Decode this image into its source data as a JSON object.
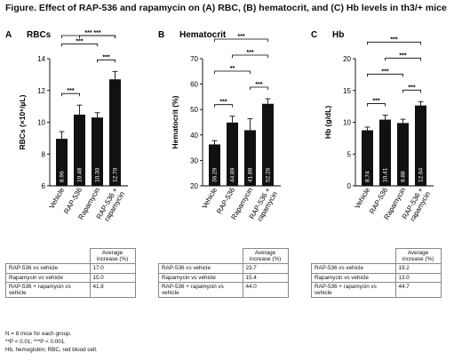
{
  "figure_title": "Figure. Effect of RAP-536 and rapamycin on (A) RBC, (B) hematocrit, and (C) Hb levels in th3/+ mice",
  "colors": {
    "bar": "#111111",
    "axis": "#000000",
    "bar_label": "#ffffff"
  },
  "chart_data": [
    {
      "type": "bar",
      "panel": "A",
      "title": "RBCs",
      "ylabel": "RBCs (×10⁶/µL)",
      "ylim": [
        6,
        14
      ],
      "yticks": [
        6,
        8,
        10,
        12,
        14
      ],
      "categories": [
        "Vehicle",
        "RAP-536",
        "Rapamycin",
        "RAP-536 + rapamycin"
      ],
      "values": [
        8.96,
        10.48,
        10.3,
        12.7
      ],
      "value_labels": [
        "8.96",
        "10.48",
        "10.30",
        "12.70"
      ],
      "errors": [
        0.45,
        0.6,
        0.3,
        0.5
      ],
      "significance": [
        {
          "from": 0,
          "to": 1,
          "label": "***"
        },
        {
          "from": 0,
          "to": 2,
          "label": "***"
        },
        {
          "from": 0,
          "to": 3,
          "label": "***"
        },
        {
          "from": 2,
          "to": 3,
          "label": "***"
        },
        {
          "from": 1,
          "to": 3,
          "label": "***"
        }
      ]
    },
    {
      "type": "bar",
      "panel": "B",
      "title": "Hematocrit",
      "ylabel": "Hematocrit (%)",
      "ylim": [
        20,
        70
      ],
      "yticks": [
        20,
        30,
        40,
        50,
        60,
        70
      ],
      "categories": [
        "Vehicle",
        "RAP-536",
        "Rapamycin",
        "RAP-536 + rapamycin"
      ],
      "values": [
        36.29,
        44.89,
        41.88,
        52.26
      ],
      "value_labels": [
        "36.29",
        "44.89",
        "41.88",
        "52.26"
      ],
      "errors": [
        1.5,
        2.5,
        4.5,
        2.0
      ],
      "significance": [
        {
          "from": 0,
          "to": 1,
          "label": "***"
        },
        {
          "from": 0,
          "to": 2,
          "label": "**"
        },
        {
          "from": 0,
          "to": 3,
          "label": "***"
        },
        {
          "from": 2,
          "to": 3,
          "label": "***"
        },
        {
          "from": 1,
          "to": 3,
          "label": "***"
        }
      ]
    },
    {
      "type": "bar",
      "panel": "C",
      "title": "Hb",
      "ylabel": "Hb (g/dL)",
      "ylim": [
        0,
        20
      ],
      "yticks": [
        0,
        5,
        10,
        15,
        20
      ],
      "categories": [
        "Vehicle",
        "RAP-536",
        "Rapamycin",
        "RAP-536 + rapamycin"
      ],
      "values": [
        8.74,
        10.41,
        9.88,
        12.64
      ],
      "value_labels": [
        "8.74",
        "10.41",
        "9.88",
        "12.64"
      ],
      "errors": [
        0.5,
        0.7,
        0.6,
        0.6
      ],
      "significance": [
        {
          "from": 0,
          "to": 1,
          "label": "***"
        },
        {
          "from": 0,
          "to": 2,
          "label": "***"
        },
        {
          "from": 0,
          "to": 3,
          "label": "***"
        },
        {
          "from": 2,
          "to": 3,
          "label": "***"
        },
        {
          "from": 1,
          "to": 3,
          "label": "***"
        }
      ]
    }
  ],
  "tables": [
    {
      "header": "Average increase (%)",
      "rows": [
        {
          "label": "RAP-536 vs vehicle",
          "value": "17.0"
        },
        {
          "label": "Rapamycin vs vehicle",
          "value": "15.0"
        },
        {
          "label": "RAP-536 + rapamycin vs vehicle",
          "value": "41.8"
        }
      ]
    },
    {
      "header": "Average increase (%)",
      "rows": [
        {
          "label": "RAP-536 vs vehicle",
          "value": "23.7"
        },
        {
          "label": "Rapamycin vs vehicle",
          "value": "15.4"
        },
        {
          "label": "RAP-536 + rapamycin vs vehicle",
          "value": "44.0"
        }
      ]
    },
    {
      "header": "Average increase (%)",
      "rows": [
        {
          "label": "RAP-536 vs vehicle",
          "value": "19.2"
        },
        {
          "label": "Rapamycin vs vehicle",
          "value": "13.0"
        },
        {
          "label": "RAP-536 + rapamycin vs vehicle",
          "value": "44.7"
        }
      ]
    }
  ],
  "footnotes": [
    "N = 8 mice for each group.",
    "**P < 0.01; ***P < 0.001.",
    "Hb, hemoglobin; RBC, red blood cell."
  ]
}
